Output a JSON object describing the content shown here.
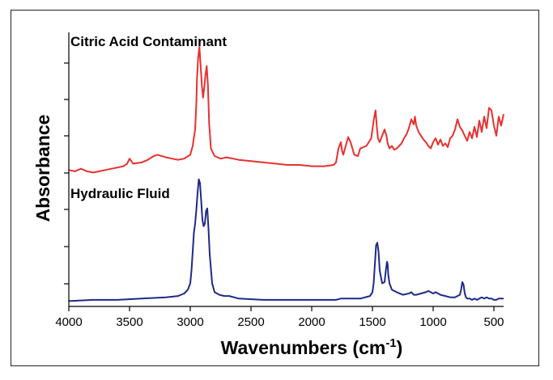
{
  "chart_data": {
    "type": "line",
    "xlabel": "Wavenumbers (cm⁻¹)",
    "ylabel": "Absorbance",
    "xlim": [
      4000,
      420
    ],
    "x_reversed": true,
    "x_ticks": [
      4000,
      3500,
      3000,
      2500,
      2000,
      1500,
      1000,
      500
    ],
    "grid": false,
    "y_ticks_shown": true,
    "y_tick_labels_shown": false,
    "series": [
      {
        "name": "Citric Acid Contaminant",
        "color": "#e8302f",
        "offset": 0.56,
        "x": [
          4000,
          3950,
          3900,
          3850,
          3800,
          3750,
          3700,
          3650,
          3600,
          3550,
          3520,
          3500,
          3470,
          3400,
          3350,
          3300,
          3270,
          3200,
          3150,
          3100,
          3050,
          3000,
          2980,
          2960,
          2950,
          2945,
          2935,
          2925,
          2915,
          2905,
          2895,
          2885,
          2875,
          2865,
          2855,
          2845,
          2830,
          2800,
          2750,
          2700,
          2600,
          2500,
          2400,
          2300,
          2200,
          2100,
          2000,
          1900,
          1820,
          1800,
          1780,
          1760,
          1750,
          1740,
          1720,
          1700,
          1680,
          1650,
          1620,
          1600,
          1550,
          1510,
          1490,
          1475,
          1465,
          1455,
          1440,
          1420,
          1400,
          1385,
          1375,
          1360,
          1340,
          1320,
          1300,
          1280,
          1260,
          1240,
          1220,
          1200,
          1180,
          1160,
          1150,
          1140,
          1120,
          1100,
          1080,
          1060,
          1040,
          1020,
          1000,
          980,
          960,
          940,
          920,
          900,
          880,
          860,
          840,
          820,
          800,
          790,
          780,
          760,
          740,
          720,
          700,
          680,
          660,
          640,
          620,
          600,
          580,
          560,
          540,
          520,
          500,
          480,
          460,
          440,
          420
        ],
        "y": [
          0.03,
          0.02,
          0.04,
          0.02,
          0.01,
          0.02,
          0.03,
          0.04,
          0.05,
          0.06,
          0.08,
          0.12,
          0.08,
          0.09,
          0.11,
          0.14,
          0.15,
          0.13,
          0.12,
          0.11,
          0.12,
          0.15,
          0.22,
          0.35,
          0.55,
          0.75,
          0.92,
          1.0,
          0.85,
          0.7,
          0.6,
          0.68,
          0.78,
          0.85,
          0.7,
          0.4,
          0.2,
          0.14,
          0.12,
          0.13,
          0.11,
          0.1,
          0.09,
          0.08,
          0.07,
          0.07,
          0.06,
          0.06,
          0.07,
          0.09,
          0.2,
          0.25,
          0.18,
          0.15,
          0.22,
          0.29,
          0.25,
          0.15,
          0.14,
          0.2,
          0.22,
          0.28,
          0.42,
          0.5,
          0.38,
          0.28,
          0.25,
          0.3,
          0.35,
          0.3,
          0.24,
          0.2,
          0.22,
          0.19,
          0.2,
          0.22,
          0.24,
          0.28,
          0.31,
          0.36,
          0.43,
          0.39,
          0.45,
          0.38,
          0.33,
          0.3,
          0.27,
          0.25,
          0.22,
          0.2,
          0.25,
          0.28,
          0.23,
          0.27,
          0.22,
          0.24,
          0.21,
          0.28,
          0.3,
          0.35,
          0.43,
          0.4,
          0.37,
          0.34,
          0.3,
          0.26,
          0.33,
          0.28,
          0.37,
          0.29,
          0.42,
          0.33,
          0.45,
          0.36,
          0.52,
          0.5,
          0.38,
          0.3,
          0.45,
          0.38,
          0.47
        ]
      },
      {
        "name": "Hydraulic Fluid",
        "color": "#1e2a8a",
        "offset": 0.0,
        "x": [
          4000,
          3800,
          3600,
          3400,
          3200,
          3100,
          3050,
          3020,
          3000,
          2990,
          2980,
          2970,
          2960,
          2950,
          2940,
          2930,
          2920,
          2910,
          2900,
          2890,
          2880,
          2870,
          2860,
          2850,
          2840,
          2820,
          2800,
          2760,
          2720,
          2680,
          2600,
          2400,
          2200,
          2000,
          1800,
          1760,
          1740,
          1700,
          1600,
          1520,
          1500,
          1490,
          1480,
          1470,
          1460,
          1450,
          1440,
          1420,
          1400,
          1390,
          1380,
          1375,
          1370,
          1360,
          1340,
          1300,
          1250,
          1200,
          1180,
          1160,
          1140,
          1100,
          1060,
          1040,
          1020,
          1000,
          980,
          960,
          940,
          900,
          860,
          820,
          800,
          780,
          770,
          760,
          750,
          740,
          730,
          720,
          700,
          680,
          660,
          640,
          620,
          600,
          580,
          560,
          540,
          520,
          500,
          480,
          460,
          440,
          420
        ],
        "y": [
          0.01,
          0.02,
          0.02,
          0.03,
          0.04,
          0.05,
          0.07,
          0.1,
          0.15,
          0.25,
          0.4,
          0.55,
          0.62,
          0.73,
          0.86,
          0.97,
          0.94,
          0.8,
          0.65,
          0.6,
          0.62,
          0.72,
          0.74,
          0.58,
          0.38,
          0.15,
          0.08,
          0.06,
          0.05,
          0.05,
          0.03,
          0.02,
          0.02,
          0.02,
          0.02,
          0.03,
          0.03,
          0.03,
          0.03,
          0.05,
          0.08,
          0.15,
          0.3,
          0.45,
          0.47,
          0.4,
          0.25,
          0.15,
          0.16,
          0.25,
          0.32,
          0.3,
          0.22,
          0.15,
          0.1,
          0.08,
          0.06,
          0.07,
          0.08,
          0.06,
          0.06,
          0.07,
          0.08,
          0.09,
          0.08,
          0.07,
          0.08,
          0.07,
          0.06,
          0.05,
          0.04,
          0.04,
          0.05,
          0.06,
          0.1,
          0.16,
          0.14,
          0.07,
          0.04,
          0.03,
          0.03,
          0.02,
          0.03,
          0.02,
          0.03,
          0.04,
          0.03,
          0.04,
          0.03,
          0.03,
          0.02,
          0.02,
          0.03,
          0.03,
          0.03
        ]
      }
    ]
  }
}
